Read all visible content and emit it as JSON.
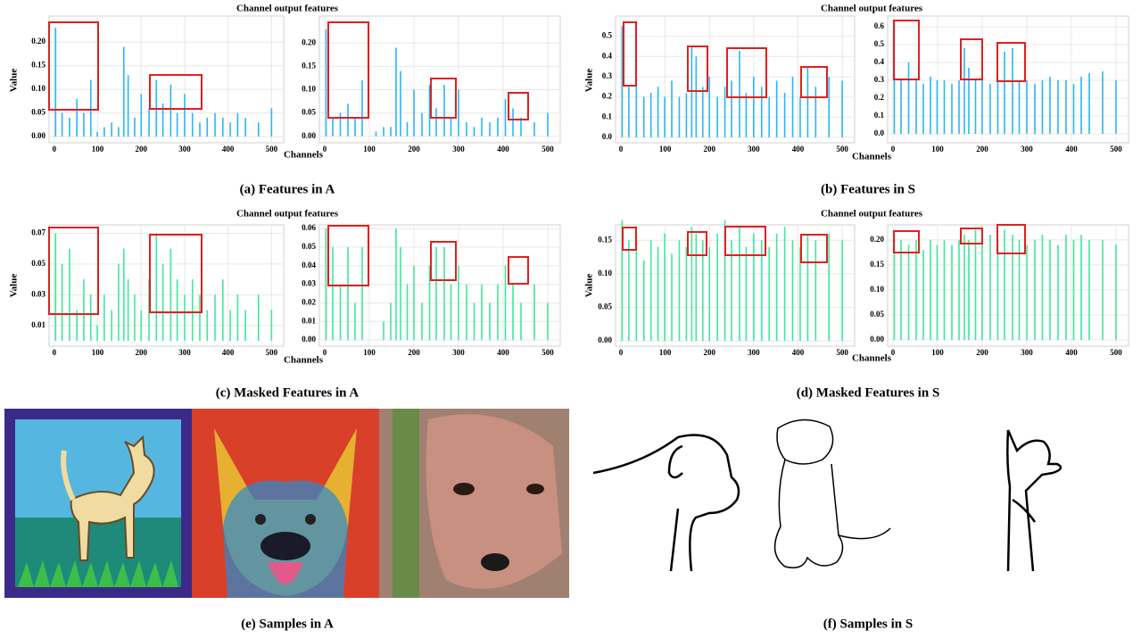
{
  "captions": [
    "(a) Features in A",
    "(b) Features in S",
    "(c) Masked Features in A",
    "(d) Masked Features in S",
    "(e) Samples in A",
    "(f) Samples in S"
  ],
  "chart_data": [
    {
      "type": "bar",
      "title": "Channel output features",
      "y_label": "Value",
      "x_label": "Channels",
      "color": "#29b6f6",
      "x": [
        3,
        18,
        35,
        52,
        68,
        84,
        99,
        115,
        132,
        148,
        160,
        170,
        185,
        200,
        218,
        235,
        250,
        268,
        283,
        300,
        318,
        335,
        352,
        370,
        388,
        405,
        422,
        440,
        470,
        500
      ],
      "values": [
        0.23,
        0.05,
        0.04,
        0.08,
        0.05,
        0.12,
        0.01,
        0.02,
        0.03,
        0.02,
        0.19,
        0.13,
        0.04,
        0.09,
        0.06,
        0.12,
        0.07,
        0.11,
        0.05,
        0.09,
        0.05,
        0.03,
        0.04,
        0.05,
        0.04,
        0.03,
        0.05,
        0.04,
        0.03,
        0.06
      ],
      "xlim": [
        -12,
        528
      ],
      "xticks": [
        0,
        100,
        200,
        300,
        400,
        500
      ],
      "ylim": [
        -0.013,
        0.255
      ],
      "yticks": [
        {
          "value": 0,
          "label": "0.00"
        },
        0.05,
        {
          "value": 0.1,
          "label": "0.10"
        },
        0.15,
        {
          "value": 0.2,
          "label": "0.20"
        }
      ],
      "grid": true
    },
    {
      "type": "bar",
      "color": "#29b6f6",
      "x": [
        3,
        18,
        35,
        52,
        68,
        84,
        99,
        115,
        132,
        148,
        160,
        170,
        185,
        200,
        218,
        235,
        250,
        268,
        283,
        300,
        318,
        335,
        352,
        370,
        388,
        405,
        422,
        440,
        470,
        500
      ],
      "values": [
        0.23,
        0.04,
        0.05,
        0.07,
        0.04,
        0.12,
        0,
        0.01,
        0.02,
        0.02,
        0.19,
        0.14,
        0.03,
        0.1,
        0.05,
        0.11,
        0.06,
        0.11,
        0.04,
        0.1,
        0.03,
        0.02,
        0.04,
        0.03,
        0.04,
        0.08,
        0.06,
        0.04,
        0.03,
        0.05
      ],
      "xlim": [
        -12,
        528
      ],
      "xticks": [
        0,
        100,
        200,
        300,
        400,
        500
      ],
      "ylim": [
        -0.014,
        0.258
      ],
      "yticks": [
        {
          "value": 0,
          "label": "0.00"
        },
        0.05,
        {
          "value": 0.1,
          "label": "0.10"
        },
        0.15,
        {
          "value": 0.2,
          "label": "0.20"
        }
      ],
      "grid": true
    },
    {
      "type": "bar",
      "title": "Channel output features",
      "y_label": "Value",
      "x_label": "Channels",
      "color": "#29b6f6",
      "x": [
        3,
        18,
        35,
        52,
        68,
        84,
        99,
        115,
        132,
        148,
        160,
        170,
        185,
        200,
        218,
        235,
        250,
        268,
        283,
        300,
        318,
        335,
        352,
        370,
        388,
        405,
        422,
        440,
        470,
        500
      ],
      "values": [
        0.55,
        0.25,
        0.3,
        0.2,
        0.22,
        0.25,
        0.2,
        0.28,
        0.2,
        0.22,
        0.45,
        0.4,
        0.25,
        0.3,
        0.2,
        0.25,
        0.28,
        0.43,
        0.22,
        0.3,
        0.25,
        0.2,
        0.28,
        0.22,
        0.3,
        0.2,
        0.35,
        0.25,
        0.3,
        0.28
      ],
      "xlim": [
        -12,
        528
      ],
      "xticks": [
        0,
        100,
        200,
        300,
        400,
        500
      ],
      "ylim": [
        -0.027,
        0.6
      ],
      "yticks": [
        {
          "value": 0,
          "label": "0.0"
        },
        0.1,
        0.2,
        0.3,
        0.4,
        0.5
      ],
      "grid": true
    },
    {
      "type": "bar",
      "color": "#29b6f6",
      "x": [
        3,
        18,
        35,
        52,
        68,
        84,
        99,
        115,
        132,
        148,
        160,
        170,
        185,
        200,
        218,
        235,
        250,
        268,
        283,
        300,
        318,
        335,
        352,
        370,
        388,
        405,
        422,
        440,
        470,
        500
      ],
      "values": [
        0.62,
        0.3,
        0.4,
        0.3,
        0.28,
        0.32,
        0.3,
        0.3,
        0.28,
        0.3,
        0.48,
        0.37,
        0.3,
        0.32,
        0.28,
        0.3,
        0.46,
        0.48,
        0.3,
        0.3,
        0.28,
        0.3,
        0.32,
        0.3,
        0.3,
        0.28,
        0.32,
        0.34,
        0.35,
        0.3
      ],
      "xlim": [
        -12,
        528
      ],
      "xticks": [
        0,
        100,
        200,
        300,
        400,
        500
      ],
      "ylim": [
        -0.05,
        0.66
      ],
      "yticks": [
        {
          "value": 0,
          "label": "0.0"
        },
        0.1,
        0.2,
        0.3,
        0.4,
        0.5,
        0.6
      ],
      "grid": true
    },
    {
      "type": "bar",
      "title": "Channel output features",
      "y_label": "Value",
      "x_label": "Channels",
      "color": "#3ee89a",
      "x": [
        3,
        18,
        35,
        52,
        68,
        84,
        99,
        115,
        132,
        148,
        160,
        170,
        185,
        200,
        218,
        235,
        250,
        268,
        283,
        300,
        318,
        335,
        352,
        370,
        388,
        405,
        422,
        440,
        470,
        500
      ],
      "values": [
        0.07,
        0.05,
        0.06,
        0.02,
        0.04,
        0.03,
        0.01,
        0.03,
        0.02,
        0.05,
        0.06,
        0.04,
        0.03,
        0.02,
        0.04,
        0.07,
        0.05,
        0.06,
        0.04,
        0.03,
        0.04,
        0.03,
        0.02,
        0.03,
        0.04,
        0.02,
        0.03,
        0.02,
        0.03,
        0.02
      ],
      "xlim": [
        -12,
        528
      ],
      "xticks": [
        0,
        100,
        200,
        300,
        400,
        500
      ],
      "ylim": [
        -0.0035,
        0.0755
      ],
      "yticks": [
        0.01,
        0.03,
        0.05,
        0.07
      ],
      "grid": true
    },
    {
      "type": "bar",
      "color": "#3ee89a",
      "x": [
        3,
        18,
        35,
        52,
        68,
        84,
        99,
        115,
        132,
        148,
        160,
        170,
        185,
        200,
        218,
        235,
        250,
        268,
        283,
        300,
        318,
        335,
        352,
        370,
        388,
        405,
        422,
        440,
        470,
        500
      ],
      "values": [
        0.06,
        0.05,
        0.03,
        0.05,
        0.02,
        0.05,
        0,
        0,
        0.01,
        0.02,
        0.06,
        0.05,
        0.03,
        0.04,
        0.02,
        0.04,
        0.05,
        0.05,
        0.03,
        0.04,
        0.03,
        0.02,
        0.03,
        0.02,
        0.03,
        0.04,
        0.03,
        0.02,
        0.03,
        0.02
      ],
      "xlim": [
        -12,
        528
      ],
      "xticks": [
        0,
        100,
        200,
        300,
        400,
        500
      ],
      "ylim": [
        -0.0033,
        0.062
      ],
      "yticks": [
        {
          "value": 0,
          "label": "0.00"
        },
        0.01,
        0.02,
        0.03,
        0.04,
        0.05,
        0.06
      ],
      "grid": true
    },
    {
      "type": "bar",
      "title": "Channel output features",
      "y_label": "Value",
      "x_label": "Channels",
      "color": "#3ee89a",
      "x": [
        3,
        18,
        35,
        52,
        68,
        84,
        99,
        115,
        132,
        148,
        160,
        170,
        185,
        200,
        218,
        235,
        250,
        268,
        283,
        300,
        318,
        335,
        352,
        370,
        388,
        405,
        422,
        440,
        470,
        500
      ],
      "values": [
        0.18,
        0.15,
        0.16,
        0.12,
        0.15,
        0.14,
        0.16,
        0.13,
        0.15,
        0.14,
        0.17,
        0.16,
        0.15,
        0.14,
        0.16,
        0.18,
        0.15,
        0.17,
        0.14,
        0.16,
        0.15,
        0.14,
        0.16,
        0.17,
        0.15,
        0.14,
        0.16,
        0.15,
        0.16,
        0.15
      ],
      "xlim": [
        -12,
        528
      ],
      "xticks": [
        0,
        100,
        200,
        300,
        400,
        500
      ],
      "ylim": [
        -0.008,
        0.173
      ],
      "yticks": [
        {
          "value": 0,
          "label": "0.00"
        },
        0.05,
        {
          "value": 0.1,
          "label": "0.10"
        },
        0.15
      ],
      "grid": true
    },
    {
      "type": "bar",
      "color": "#3ee89a",
      "x": [
        3,
        18,
        35,
        52,
        68,
        84,
        99,
        115,
        132,
        148,
        160,
        170,
        185,
        200,
        218,
        235,
        250,
        268,
        283,
        300,
        318,
        335,
        352,
        370,
        388,
        405,
        422,
        440,
        470,
        500
      ],
      "values": [
        0.21,
        0.2,
        0.19,
        0.2,
        0.18,
        0.2,
        0.19,
        0.2,
        0.19,
        0.2,
        0.21,
        0.2,
        0.22,
        0.2,
        0.21,
        0.2,
        0.22,
        0.21,
        0.2,
        0.19,
        0.2,
        0.21,
        0.2,
        0.19,
        0.21,
        0.2,
        0.21,
        0.2,
        0.2,
        0.19
      ],
      "xlim": [
        -12,
        528
      ],
      "xticks": [
        0,
        100,
        200,
        300,
        400,
        500
      ],
      "ylim": [
        -0.0125,
        0.23
      ],
      "yticks": [
        {
          "value": 0,
          "label": "0.00"
        },
        0.05,
        {
          "value": 0.1,
          "label": "0.10"
        },
        0.15,
        {
          "value": 0.2,
          "label": "0.20"
        }
      ],
      "grid": true
    }
  ]
}
